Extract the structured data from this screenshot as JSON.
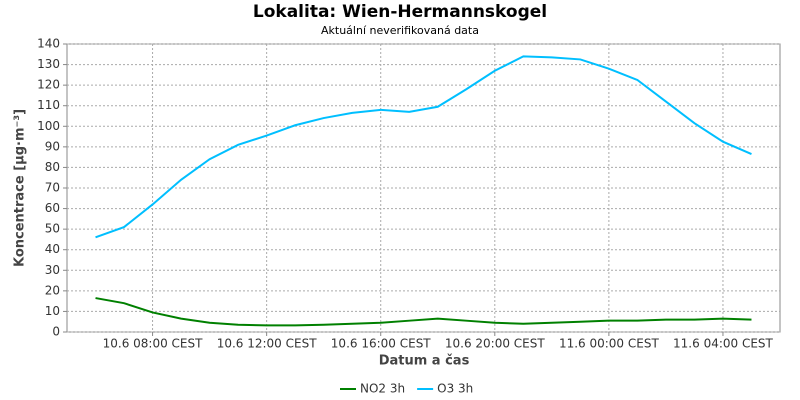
{
  "chart_data": {
    "type": "line",
    "title": "Lokalita: Wien-Hermannskogel",
    "subtitle": "Aktuální neverifikovaná data",
    "x_label": "Datum a čas",
    "y_label": "Koncentrace [µg·m⁻³]",
    "x": [
      6,
      7,
      8,
      9,
      10,
      11,
      12,
      13,
      14,
      15,
      16,
      17,
      18,
      19,
      20,
      21,
      22,
      23,
      24,
      25,
      26,
      27,
      28,
      29
    ],
    "xlim": [
      5,
      30
    ],
    "xticks": [
      {
        "value": 8,
        "label": "10.6 08:00 CEST"
      },
      {
        "value": 12,
        "label": "10.6 12:00 CEST"
      },
      {
        "value": 16,
        "label": "10.6 16:00 CEST"
      },
      {
        "value": 20,
        "label": "10.6 20:00 CEST"
      },
      {
        "value": 24,
        "label": "11.6 00:00 CEST"
      },
      {
        "value": 28,
        "label": "11.6 04:00 CEST"
      }
    ],
    "ylim": [
      0,
      140
    ],
    "yticks": [
      0,
      10,
      20,
      30,
      40,
      50,
      60,
      70,
      80,
      90,
      100,
      110,
      120,
      130,
      140
    ],
    "grid": true,
    "legend": "bottom",
    "series": [
      {
        "name": "NO2 3h",
        "color": "#008000",
        "values": [
          16.5,
          14,
          9.5,
          6.5,
          4.5,
          3.5,
          3.2,
          3.2,
          3.5,
          4,
          4.5,
          5.5,
          6.5,
          5.5,
          4.5,
          4,
          4.5,
          5,
          5.5,
          5.5,
          6,
          6,
          6.5,
          6
        ]
      },
      {
        "name": "O3 3h",
        "color": "#00bfff",
        "values": [
          46,
          51,
          62,
          74,
          84,
          91,
          95.5,
          100.5,
          104,
          106.5,
          108,
          107,
          109.5,
          118,
          127,
          134,
          133.5,
          132.5,
          128,
          122.5,
          112,
          101.5,
          92.5,
          86.5
        ]
      }
    ]
  }
}
